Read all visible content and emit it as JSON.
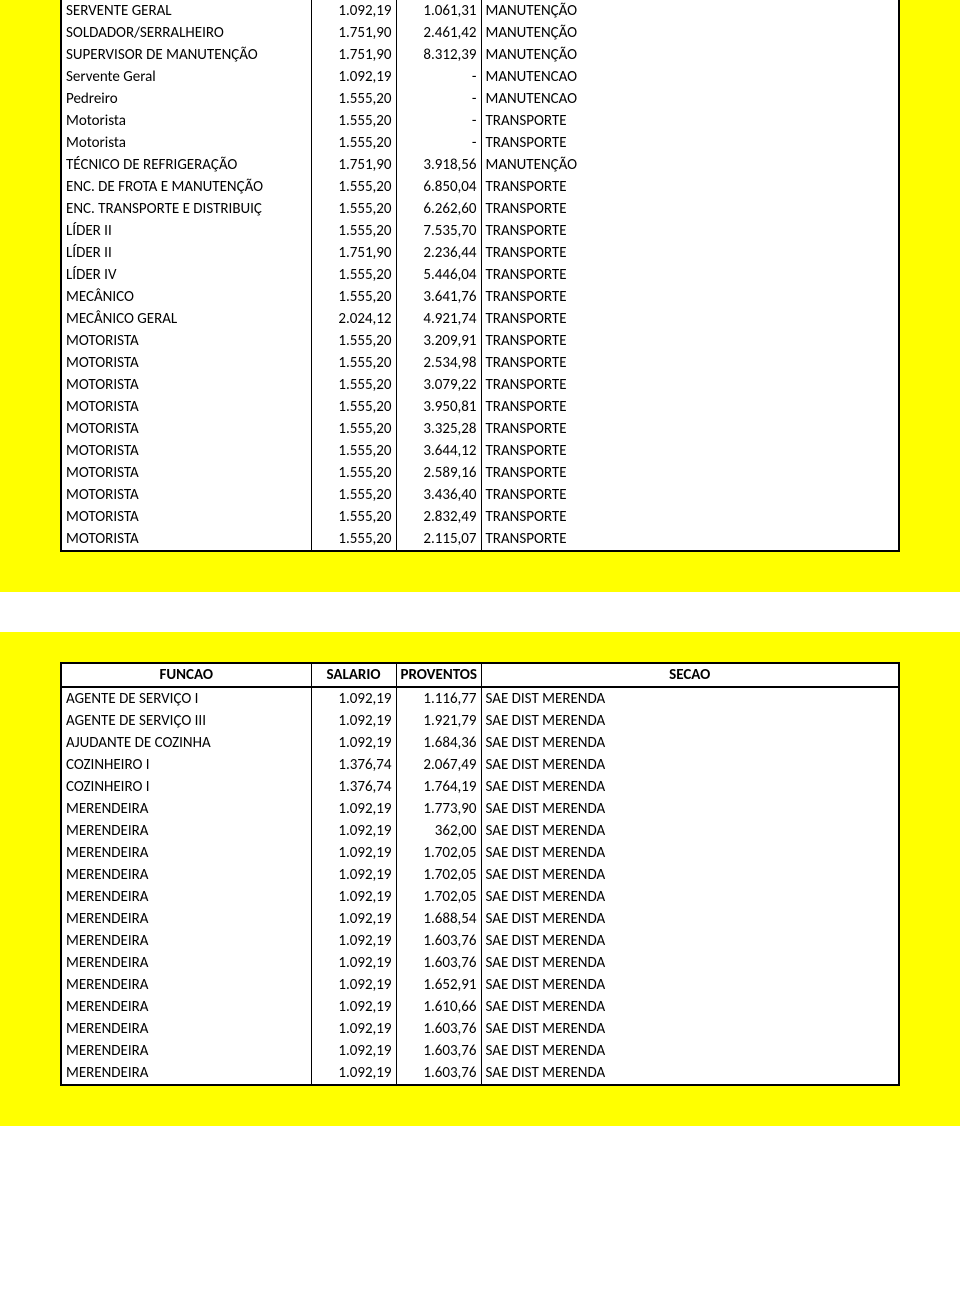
{
  "colors": {
    "highlight": "#ffff00",
    "border": "#000000",
    "text": "#000000",
    "page_bg": "#ffffff"
  },
  "typography": {
    "font_family": "Calibri",
    "body_fontsize_pt": 11,
    "header_fontsize_pt": 11,
    "header_weight": "bold"
  },
  "columns": {
    "funcao": "FUNCAO",
    "salario": "SALARIO",
    "proventos": "PROVENTOS",
    "secao": "SECAO"
  },
  "table1": {
    "rows": [
      {
        "funcao": "SERVENTE GERAL",
        "salario": "1.092,19",
        "proventos": "1.061,31",
        "secao": "MANUTENÇÃO"
      },
      {
        "funcao": "SOLDADOR/SERRALHEIRO",
        "salario": "1.751,90",
        "proventos": "2.461,42",
        "secao": "MANUTENÇÃO"
      },
      {
        "funcao": "SUPERVISOR DE MANUTENÇÃO",
        "salario": "1.751,90",
        "proventos": "8.312,39",
        "secao": "MANUTENÇÃO"
      },
      {
        "funcao": "Servente Geral",
        "salario": "1.092,19",
        "proventos": "-",
        "secao": "MANUTENCAO"
      },
      {
        "funcao": "Pedreiro",
        "salario": "1.555,20",
        "proventos": "-",
        "secao": "MANUTENCAO"
      },
      {
        "funcao": "Motorista",
        "salario": "1.555,20",
        "proventos": "-",
        "secao": "TRANSPORTE"
      },
      {
        "funcao": "Motorista",
        "salario": "1.555,20",
        "proventos": "-",
        "secao": "TRANSPORTE"
      },
      {
        "funcao": "TÉCNICO DE REFRIGERAÇÃO",
        "salario": "1.751,90",
        "proventos": "3.918,56",
        "secao": "MANUTENÇÃO"
      },
      {
        "funcao": "ENC. DE FROTA E MANUTENÇÃO",
        "salario": "1.555,20",
        "proventos": "6.850,04",
        "secao": "TRANSPORTE"
      },
      {
        "funcao": "ENC. TRANSPORTE E DISTRIBUIÇ",
        "salario": "1.555,20",
        "proventos": "6.262,60",
        "secao": "TRANSPORTE"
      },
      {
        "funcao": "LÍDER II",
        "salario": "1.555,20",
        "proventos": "7.535,70",
        "secao": "TRANSPORTE"
      },
      {
        "funcao": "LÍDER II",
        "salario": "1.751,90",
        "proventos": "2.236,44",
        "secao": "TRANSPORTE"
      },
      {
        "funcao": "LÍDER IV",
        "salario": "1.555,20",
        "proventos": "5.446,04",
        "secao": "TRANSPORTE"
      },
      {
        "funcao": "MECÂNICO",
        "salario": "1.555,20",
        "proventos": "3.641,76",
        "secao": "TRANSPORTE"
      },
      {
        "funcao": "MECÂNICO GERAL",
        "salario": "2.024,12",
        "proventos": "4.921,74",
        "secao": "TRANSPORTE"
      },
      {
        "funcao": "MOTORISTA",
        "salario": "1.555,20",
        "proventos": "3.209,91",
        "secao": "TRANSPORTE"
      },
      {
        "funcao": "MOTORISTA",
        "salario": "1.555,20",
        "proventos": "2.534,98",
        "secao": "TRANSPORTE"
      },
      {
        "funcao": "MOTORISTA",
        "salario": "1.555,20",
        "proventos": "3.079,22",
        "secao": "TRANSPORTE"
      },
      {
        "funcao": "MOTORISTA",
        "salario": "1.555,20",
        "proventos": "3.950,81",
        "secao": "TRANSPORTE"
      },
      {
        "funcao": "MOTORISTA",
        "salario": "1.555,20",
        "proventos": "3.325,28",
        "secao": "TRANSPORTE"
      },
      {
        "funcao": "MOTORISTA",
        "salario": "1.555,20",
        "proventos": "3.644,12",
        "secao": "TRANSPORTE"
      },
      {
        "funcao": "MOTORISTA",
        "salario": "1.555,20",
        "proventos": "2.589,16",
        "secao": "TRANSPORTE"
      },
      {
        "funcao": "MOTORISTA",
        "salario": "1.555,20",
        "proventos": "3.436,40",
        "secao": "TRANSPORTE"
      },
      {
        "funcao": "MOTORISTA",
        "salario": "1.555,20",
        "proventos": "2.832,49",
        "secao": "TRANSPORTE"
      },
      {
        "funcao": "MOTORISTA",
        "salario": "1.555,20",
        "proventos": "2.115,07",
        "secao": "TRANSPORTE"
      }
    ]
  },
  "table2": {
    "rows": [
      {
        "funcao": "AGENTE DE SERVIÇO I",
        "salario": "1.092,19",
        "proventos": "1.116,77",
        "secao": "SAE DIST MERENDA"
      },
      {
        "funcao": "AGENTE DE SERVIÇO III",
        "salario": "1.092,19",
        "proventos": "1.921,79",
        "secao": "SAE DIST MERENDA"
      },
      {
        "funcao": "AJUDANTE DE COZINHA",
        "salario": "1.092,19",
        "proventos": "1.684,36",
        "secao": "SAE DIST MERENDA"
      },
      {
        "funcao": "COZINHEIRO I",
        "salario": "1.376,74",
        "proventos": "2.067,49",
        "secao": "SAE DIST MERENDA"
      },
      {
        "funcao": "COZINHEIRO I",
        "salario": "1.376,74",
        "proventos": "1.764,19",
        "secao": "SAE DIST MERENDA"
      },
      {
        "funcao": "MERENDEIRA",
        "salario": "1.092,19",
        "proventos": "1.773,90",
        "secao": "SAE DIST MERENDA"
      },
      {
        "funcao": "MERENDEIRA",
        "salario": "1.092,19",
        "proventos": "362,00",
        "secao": "SAE DIST MERENDA"
      },
      {
        "funcao": "MERENDEIRA",
        "salario": "1.092,19",
        "proventos": "1.702,05",
        "secao": "SAE DIST MERENDA"
      },
      {
        "funcao": "MERENDEIRA",
        "salario": "1.092,19",
        "proventos": "1.702,05",
        "secao": "SAE DIST MERENDA"
      },
      {
        "funcao": "MERENDEIRA",
        "salario": "1.092,19",
        "proventos": "1.702,05",
        "secao": "SAE DIST MERENDA"
      },
      {
        "funcao": "MERENDEIRA",
        "salario": "1.092,19",
        "proventos": "1.688,54",
        "secao": "SAE DIST MERENDA"
      },
      {
        "funcao": "MERENDEIRA",
        "salario": "1.092,19",
        "proventos": "1.603,76",
        "secao": "SAE DIST MERENDA"
      },
      {
        "funcao": "MERENDEIRA",
        "salario": "1.092,19",
        "proventos": "1.603,76",
        "secao": "SAE DIST MERENDA"
      },
      {
        "funcao": "MERENDEIRA",
        "salario": "1.092,19",
        "proventos": "1.652,91",
        "secao": "SAE DIST MERENDA"
      },
      {
        "funcao": "MERENDEIRA",
        "salario": "1.092,19",
        "proventos": "1.610,66",
        "secao": "SAE DIST MERENDA"
      },
      {
        "funcao": "MERENDEIRA",
        "salario": "1.092,19",
        "proventos": "1.603,76",
        "secao": "SAE DIST MERENDA"
      },
      {
        "funcao": "MERENDEIRA",
        "salario": "1.092,19",
        "proventos": "1.603,76",
        "secao": "SAE DIST MERENDA"
      },
      {
        "funcao": "MERENDEIRA",
        "salario": "1.092,19",
        "proventos": "1.603,76",
        "secao": "SAE DIST MERENDA"
      }
    ]
  }
}
